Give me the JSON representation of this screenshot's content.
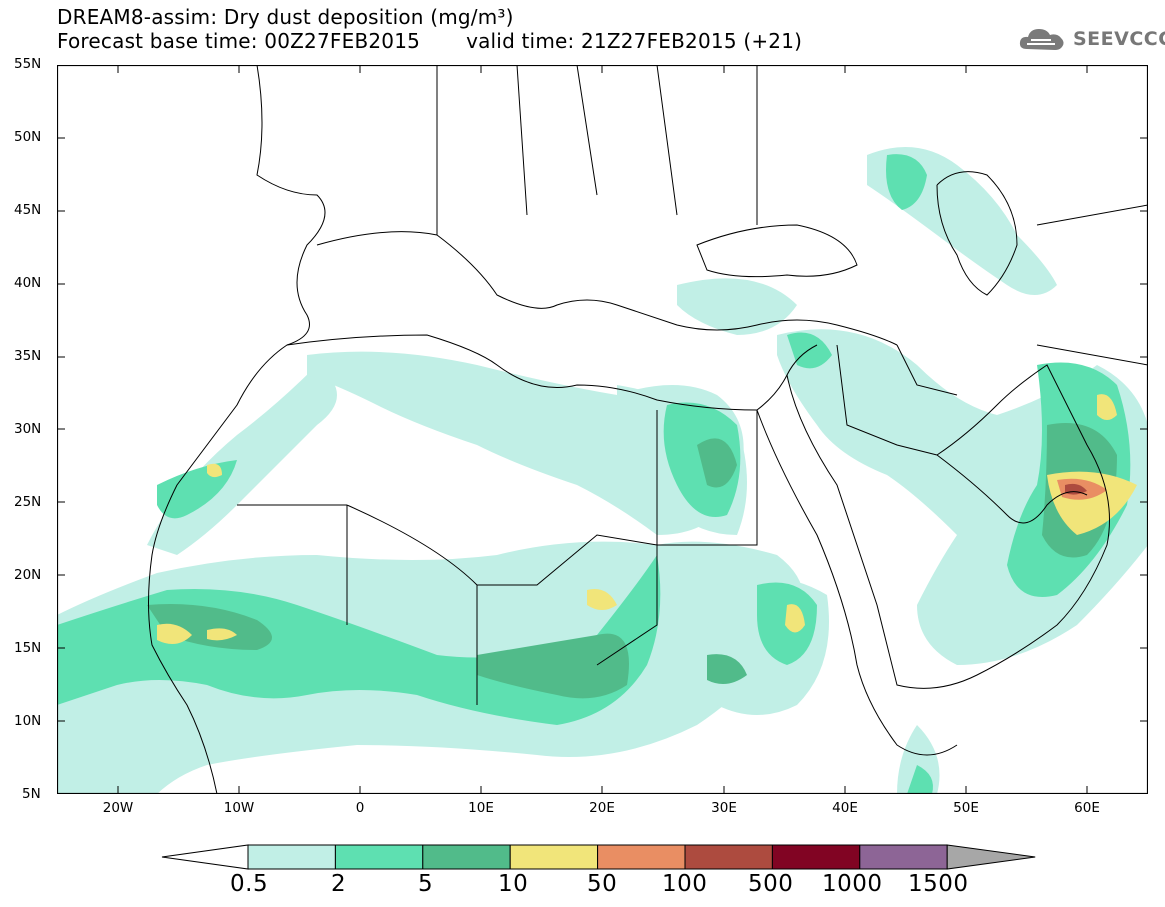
{
  "header": {
    "title_line1": "DREAM8-assim: Dry dust deposition (mg/m³)",
    "title_forecast": "Forecast base time: 00Z27FEB2015",
    "title_valid": "valid time: 21Z27FEB2015 (+21)",
    "logo_text": "SEEVCCC"
  },
  "axes": {
    "lat_labels": [
      "55N",
      "50N",
      "45N",
      "40N",
      "35N",
      "30N",
      "25N",
      "20N",
      "15N",
      "10N",
      "5N"
    ],
    "lon_labels": [
      "20W",
      "10W",
      "0",
      "10E",
      "20E",
      "30E",
      "40E",
      "50E",
      "60E"
    ]
  },
  "map": {
    "region": "North Africa, Europe and Middle East",
    "lon_range": [
      -25,
      65
    ],
    "lat_range": [
      5,
      55
    ]
  },
  "legend": {
    "labels": [
      "0.5",
      "2",
      "5",
      "10",
      "50",
      "100",
      "500",
      "1000",
      "1500"
    ],
    "colors": [
      "#ffffff",
      "#c1efe6",
      "#5ee0b1",
      "#51bb8a",
      "#f1e57a",
      "#e98e63",
      "#ad4b3f",
      "#810423",
      "#8d6596",
      "#a7a7a7"
    ]
  }
}
